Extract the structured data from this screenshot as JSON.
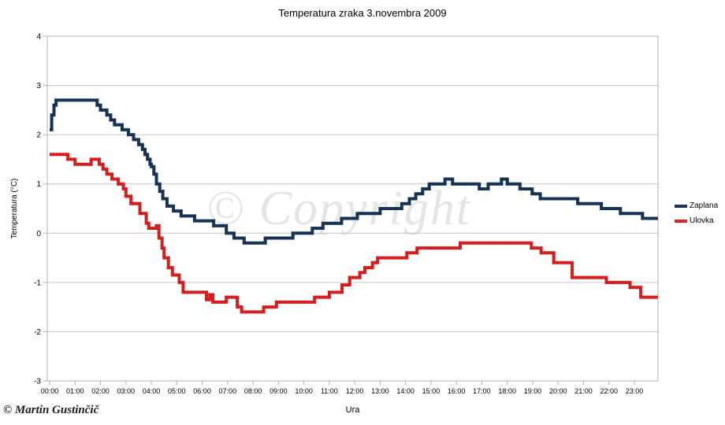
{
  "chart_data": {
    "type": "line",
    "line_style": "step",
    "title": "Temperatura zraka 3.novembra 2009",
    "xlabel": "Ura",
    "ylabel": "Temperatura (°C)",
    "ylim": [
      -3,
      4
    ],
    "xlim_hours": [
      0,
      23.93
    ],
    "grid": "horizontal",
    "legend_position": "right",
    "y_ticks": [
      4,
      3,
      2,
      1,
      0,
      -1,
      -2,
      -3
    ],
    "x_tick_labels": [
      "00:00",
      "01:00",
      "02:00",
      "03:00",
      "04:00",
      "05:00",
      "06:00",
      "07:00",
      "08:00",
      "09:00",
      "10:00",
      "11:00",
      "12:00",
      "13:00",
      "14:00",
      "15:00",
      "16:00",
      "17:00",
      "18:00",
      "19:00",
      "20:00",
      "21:00",
      "22:00",
      "23:00"
    ],
    "series": [
      {
        "name": "Zaplana",
        "color": "#17375E",
        "texture_color": "#0D2138",
        "points": [
          [
            0.0,
            2.1
          ],
          [
            0.08,
            2.4
          ],
          [
            0.17,
            2.6
          ],
          [
            0.25,
            2.7
          ],
          [
            1.87,
            2.6
          ],
          [
            2.0,
            2.5
          ],
          [
            2.25,
            2.4
          ],
          [
            2.4,
            2.3
          ],
          [
            2.55,
            2.2
          ],
          [
            2.85,
            2.1
          ],
          [
            3.1,
            2.0
          ],
          [
            3.3,
            1.9
          ],
          [
            3.5,
            1.8
          ],
          [
            3.65,
            1.7
          ],
          [
            3.75,
            1.6
          ],
          [
            3.85,
            1.5
          ],
          [
            3.95,
            1.4
          ],
          [
            4.0,
            1.35
          ],
          [
            4.1,
            1.2
          ],
          [
            4.2,
            1.0
          ],
          [
            4.33,
            0.85
          ],
          [
            4.45,
            0.7
          ],
          [
            4.62,
            0.55
          ],
          [
            4.87,
            0.45
          ],
          [
            5.17,
            0.35
          ],
          [
            5.7,
            0.25
          ],
          [
            6.45,
            0.15
          ],
          [
            6.95,
            0.0
          ],
          [
            7.25,
            -0.1
          ],
          [
            7.65,
            -0.2
          ],
          [
            8.48,
            -0.1
          ],
          [
            9.57,
            0.0
          ],
          [
            10.33,
            0.1
          ],
          [
            10.75,
            0.2
          ],
          [
            11.48,
            0.3
          ],
          [
            12.1,
            0.4
          ],
          [
            13.0,
            0.5
          ],
          [
            13.85,
            0.6
          ],
          [
            14.15,
            0.7
          ],
          [
            14.4,
            0.8
          ],
          [
            14.67,
            0.9
          ],
          [
            14.93,
            1.0
          ],
          [
            15.55,
            1.1
          ],
          [
            15.85,
            1.0
          ],
          [
            16.9,
            0.9
          ],
          [
            17.25,
            1.0
          ],
          [
            17.77,
            1.1
          ],
          [
            18.0,
            1.0
          ],
          [
            18.5,
            0.9
          ],
          [
            18.98,
            0.8
          ],
          [
            19.3,
            0.7
          ],
          [
            20.77,
            0.6
          ],
          [
            21.7,
            0.5
          ],
          [
            22.45,
            0.4
          ],
          [
            23.32,
            0.3
          ],
          [
            23.93,
            0.3
          ]
        ]
      },
      {
        "name": "Ulovka",
        "color": "#E32222",
        "texture_color": "#9B0F0F",
        "points": [
          [
            0.0,
            1.6
          ],
          [
            0.72,
            1.5
          ],
          [
            1.0,
            1.4
          ],
          [
            1.63,
            1.5
          ],
          [
            1.95,
            1.4
          ],
          [
            2.1,
            1.3
          ],
          [
            2.25,
            1.2
          ],
          [
            2.45,
            1.1
          ],
          [
            2.7,
            1.0
          ],
          [
            2.9,
            0.9
          ],
          [
            3.0,
            0.75
          ],
          [
            3.2,
            0.6
          ],
          [
            3.55,
            0.4
          ],
          [
            3.8,
            0.2
          ],
          [
            3.9,
            0.1
          ],
          [
            4.2,
            0.15
          ],
          [
            4.3,
            -0.1
          ],
          [
            4.42,
            -0.3
          ],
          [
            4.5,
            -0.5
          ],
          [
            4.67,
            -0.7
          ],
          [
            4.83,
            -0.85
          ],
          [
            5.1,
            -1.0
          ],
          [
            5.25,
            -1.2
          ],
          [
            6.17,
            -1.35
          ],
          [
            6.3,
            -1.25
          ],
          [
            6.42,
            -1.4
          ],
          [
            6.95,
            -1.3
          ],
          [
            7.38,
            -1.5
          ],
          [
            7.55,
            -1.6
          ],
          [
            8.42,
            -1.5
          ],
          [
            8.92,
            -1.4
          ],
          [
            10.42,
            -1.3
          ],
          [
            11.0,
            -1.2
          ],
          [
            11.5,
            -1.05
          ],
          [
            11.8,
            -0.9
          ],
          [
            12.2,
            -0.8
          ],
          [
            12.4,
            -0.7
          ],
          [
            12.7,
            -0.6
          ],
          [
            12.9,
            -0.5
          ],
          [
            14.05,
            -0.4
          ],
          [
            14.45,
            -0.3
          ],
          [
            16.15,
            -0.2
          ],
          [
            18.95,
            -0.3
          ],
          [
            19.33,
            -0.4
          ],
          [
            19.83,
            -0.6
          ],
          [
            20.55,
            -0.9
          ],
          [
            21.9,
            -1.0
          ],
          [
            22.83,
            -1.1
          ],
          [
            23.25,
            -1.3
          ],
          [
            23.93,
            -1.3
          ]
        ]
      }
    ],
    "annotations": {
      "watermark": "© Copyright",
      "credit": "© Martin Gustinčič"
    }
  }
}
